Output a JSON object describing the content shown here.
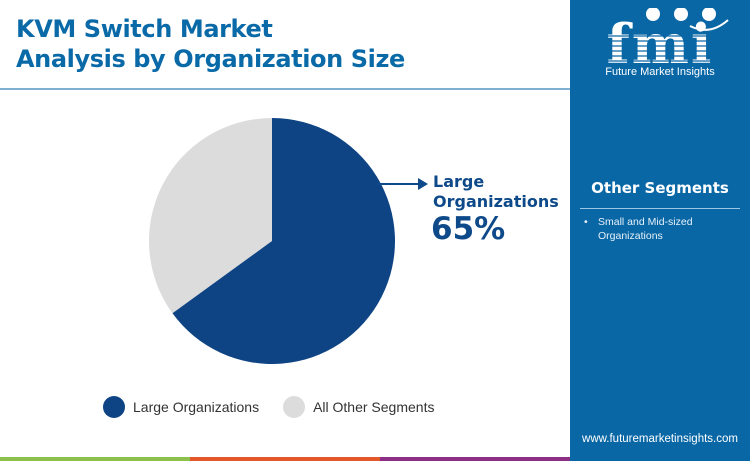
{
  "header": {
    "title_line1": "KVM Switch Market",
    "title_line2": "Analysis by Organization Size"
  },
  "sidebar": {
    "logo_text": "fmi",
    "logo_subtitle": "Future Market Insights",
    "segments_title": "Other Segments",
    "segments": [
      "Small and Mid-sized Organizations"
    ],
    "website": "www.futuremarketinsights.com",
    "background_color": "#0a67a6"
  },
  "callout": {
    "label_line1": "Large",
    "label_line2": "Organizations",
    "value": "65%"
  },
  "legend": [
    {
      "label": "Large Organizations",
      "color": "#0e4384"
    },
    {
      "label": "All Other Segments",
      "color": "#dcdcdc"
    }
  ],
  "bottom_bar_colors": [
    "#8cc04b",
    "#e2582b",
    "#8e2f86"
  ],
  "chart_data": {
    "type": "pie",
    "title": "KVM Switch Market Analysis by Organization Size",
    "categories": [
      "Large Organizations",
      "All Other Segments"
    ],
    "values": [
      65,
      35
    ],
    "colors": [
      "#0e4384",
      "#dcdcdc"
    ],
    "annotations": [
      {
        "label": "Large Organizations",
        "value": "65%"
      }
    ],
    "legend_position": "bottom"
  }
}
